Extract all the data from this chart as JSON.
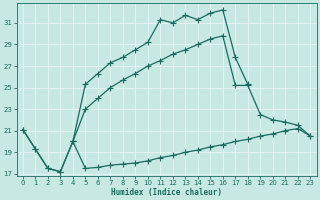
{
  "xlabel": "Humidex (Indice chaleur)",
  "bg_color": "#c8e8e4",
  "grid_color": "#b0d8d4",
  "line_color": "#1a6b5f",
  "xlim": [
    -0.5,
    23.5
  ],
  "ylim": [
    16.8,
    32.8
  ],
  "yticks": [
    17,
    19,
    21,
    23,
    25,
    27,
    29,
    31
  ],
  "xticks": [
    0,
    1,
    2,
    3,
    4,
    5,
    6,
    7,
    8,
    9,
    10,
    11,
    12,
    13,
    14,
    15,
    16,
    17,
    18,
    19,
    20,
    21,
    22,
    23
  ],
  "line_top_x": [
    4,
    5,
    6,
    7,
    8,
    9,
    10,
    11,
    12,
    13,
    14,
    15,
    16,
    17,
    18
  ],
  "line_top_y": [
    20.0,
    25.3,
    26.3,
    27.3,
    27.8,
    28.5,
    29.2,
    31.3,
    31.0,
    31.7,
    31.3,
    31.9,
    32.2,
    27.8,
    25.3
  ],
  "line_mid_x": [
    0,
    1,
    2,
    3,
    4,
    5,
    6,
    7,
    8,
    9,
    10,
    11,
    12,
    13,
    14,
    15,
    16,
    17,
    18,
    19,
    20,
    21,
    22,
    23
  ],
  "line_mid_y": [
    21.1,
    19.3,
    17.5,
    17.2,
    20.0,
    23.0,
    24.0,
    25.0,
    25.7,
    26.3,
    27.0,
    27.5,
    28.1,
    28.5,
    29.0,
    29.5,
    29.8,
    25.2,
    25.2,
    22.5,
    22.0,
    21.8,
    21.5,
    20.5
  ],
  "line_bot_x": [
    0,
    1,
    2,
    3,
    4,
    5,
    6,
    7,
    8,
    9,
    10,
    11,
    12,
    13,
    14,
    15,
    16,
    17,
    18,
    19,
    20,
    21,
    22,
    23
  ],
  "line_bot_y": [
    21.1,
    19.3,
    17.5,
    17.2,
    20.0,
    17.5,
    17.6,
    17.8,
    17.9,
    18.0,
    18.2,
    18.5,
    18.7,
    19.0,
    19.2,
    19.5,
    19.7,
    20.0,
    20.2,
    20.5,
    20.7,
    21.0,
    21.2,
    20.5
  ]
}
